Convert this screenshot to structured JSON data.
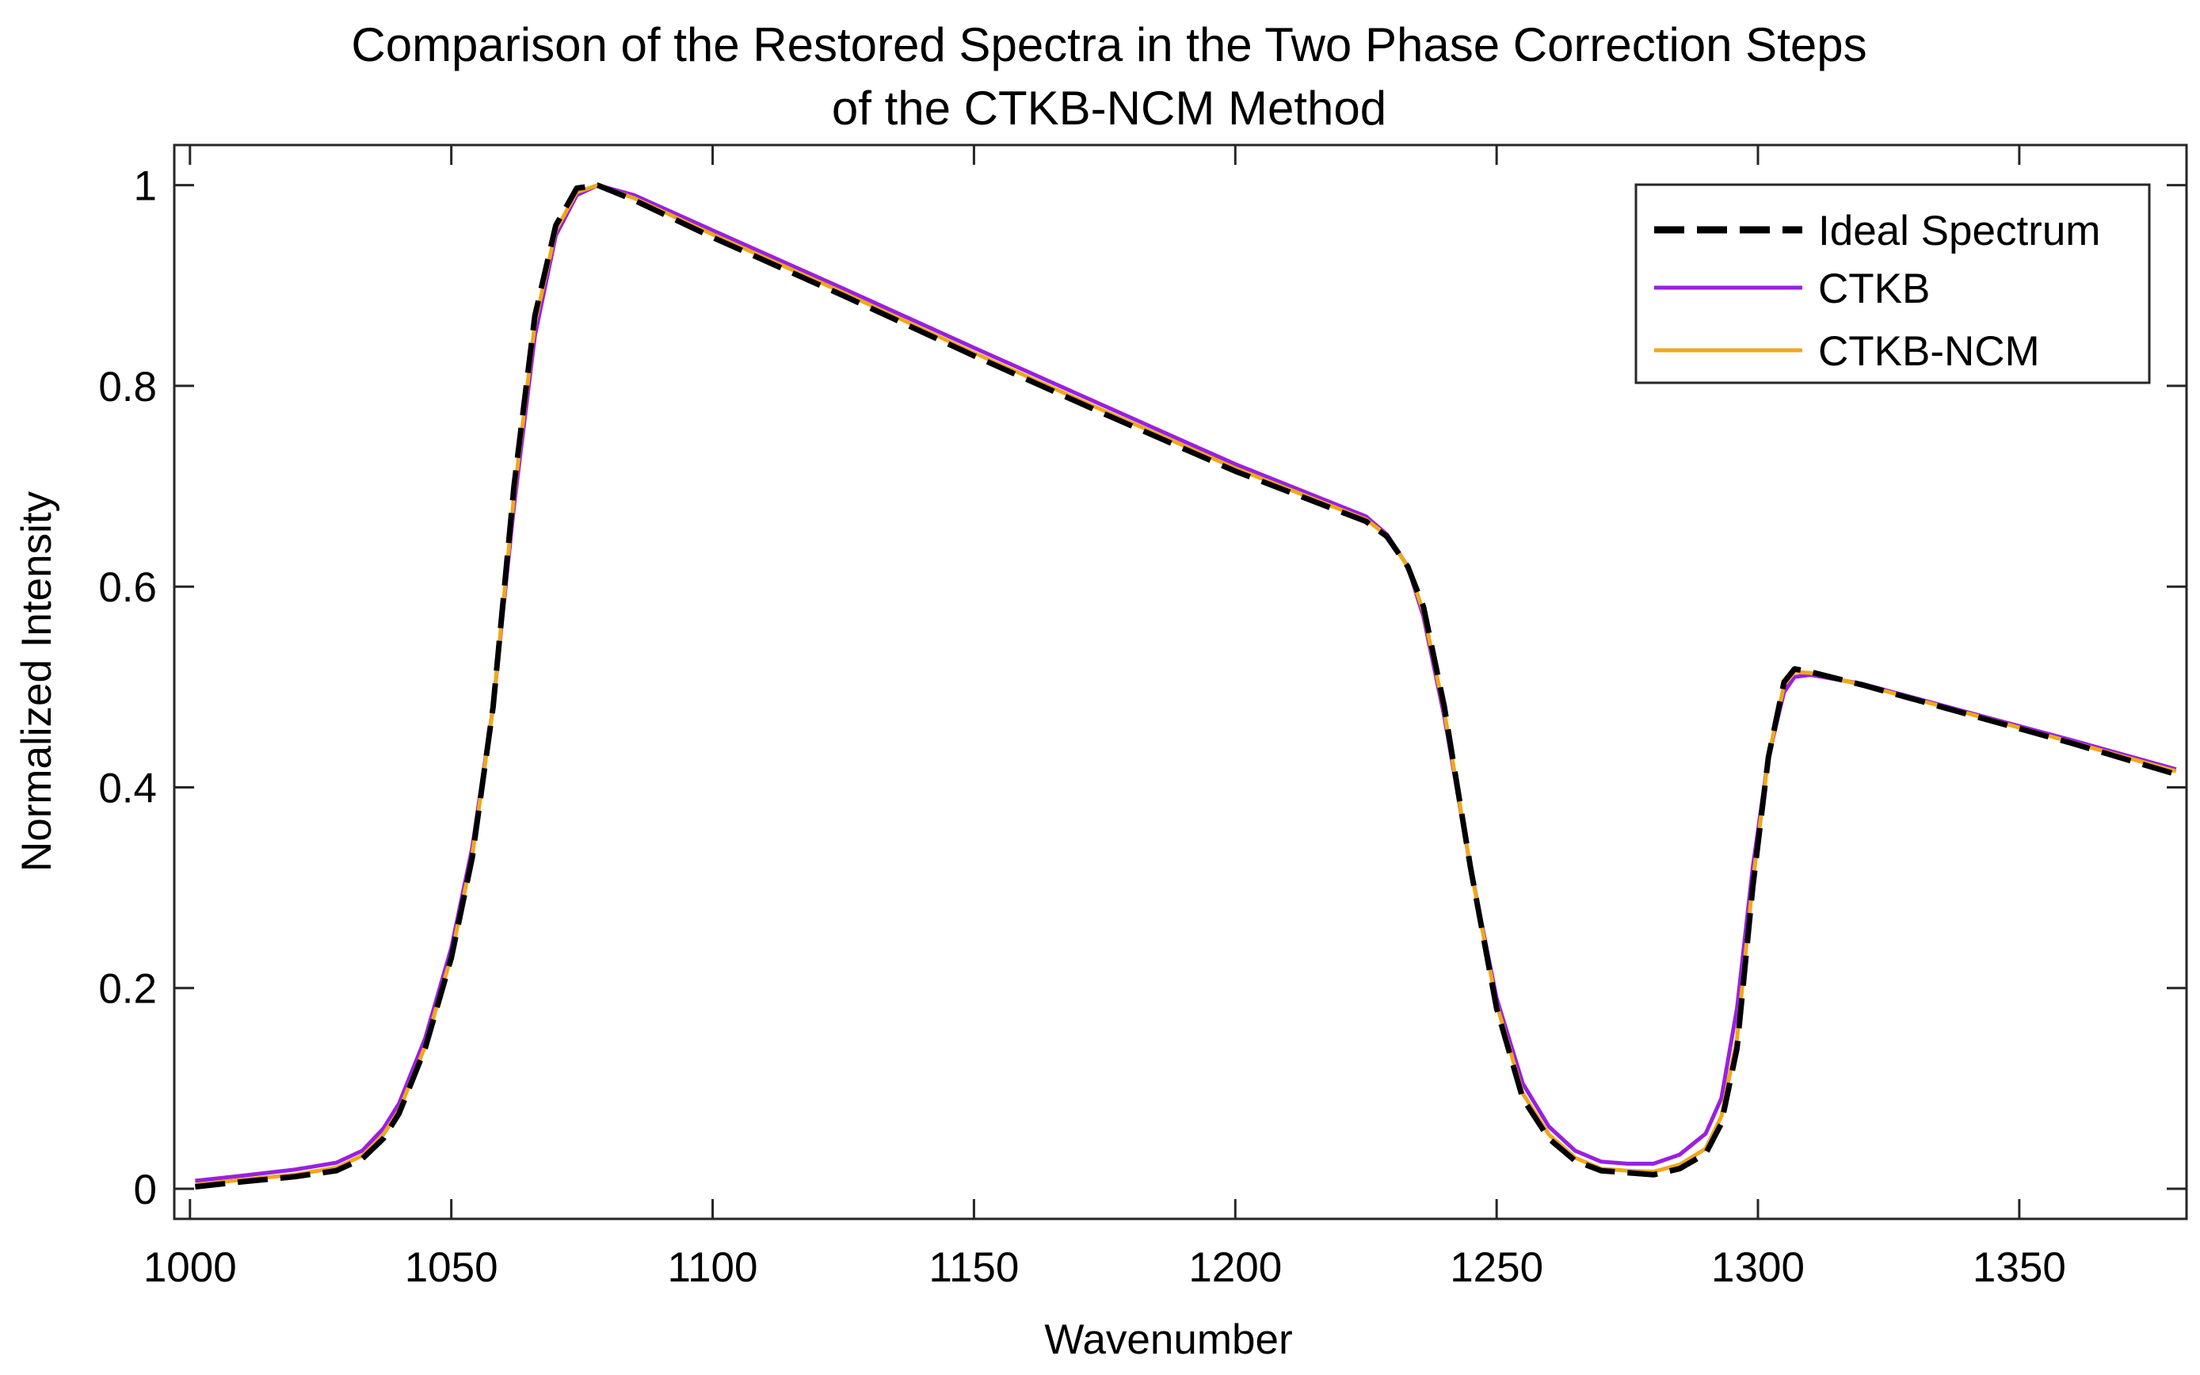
{
  "chart_data": {
    "type": "line",
    "title_line1": "Comparison of the Restored Spectra in the Two Phase Correction Steps",
    "title_line2": "of the CTKB-NCM Method",
    "xlabel": "Wavenumber",
    "ylabel": "Normalized Intensity",
    "xlim": [
      997,
      1382
    ],
    "ylim": [
      -0.03,
      1.04
    ],
    "xticks": [
      1000,
      1050,
      1100,
      1150,
      1200,
      1250,
      1300,
      1350
    ],
    "yticks": [
      0,
      0.2,
      0.4,
      0.6,
      0.8,
      1
    ],
    "ytick_labels": [
      "0",
      "0.2",
      "0.4",
      "0.6",
      "0.8",
      "1"
    ],
    "legend_position": "top-right",
    "series": [
      {
        "name": "Ideal Spectrum",
        "color": "#000000",
        "style": "dashed",
        "points": [
          [
            1001,
            0.002
          ],
          [
            1010,
            0.007
          ],
          [
            1020,
            0.012
          ],
          [
            1028,
            0.018
          ],
          [
            1033,
            0.03
          ],
          [
            1037,
            0.05
          ],
          [
            1040,
            0.075
          ],
          [
            1045,
            0.14
          ],
          [
            1050,
            0.23
          ],
          [
            1054,
            0.33
          ],
          [
            1058,
            0.48
          ],
          [
            1062,
            0.7
          ],
          [
            1066,
            0.87
          ],
          [
            1070,
            0.96
          ],
          [
            1074,
            0.997
          ],
          [
            1078,
            1.0
          ],
          [
            1085,
            0.985
          ],
          [
            1100,
            0.948
          ],
          [
            1125,
            0.89
          ],
          [
            1150,
            0.83
          ],
          [
            1175,
            0.772
          ],
          [
            1200,
            0.715
          ],
          [
            1225,
            0.665
          ],
          [
            1229,
            0.65
          ],
          [
            1233,
            0.62
          ],
          [
            1236,
            0.58
          ],
          [
            1240,
            0.48
          ],
          [
            1245,
            0.32
          ],
          [
            1250,
            0.18
          ],
          [
            1255,
            0.09
          ],
          [
            1260,
            0.05
          ],
          [
            1265,
            0.028
          ],
          [
            1270,
            0.018
          ],
          [
            1275,
            0.016
          ],
          [
            1280,
            0.014
          ],
          [
            1285,
            0.02
          ],
          [
            1290,
            0.035
          ],
          [
            1293,
            0.065
          ],
          [
            1296,
            0.14
          ],
          [
            1299,
            0.3
          ],
          [
            1302,
            0.43
          ],
          [
            1305,
            0.505
          ],
          [
            1307,
            0.518
          ],
          [
            1310,
            0.515
          ],
          [
            1320,
            0.502
          ],
          [
            1340,
            0.473
          ],
          [
            1360,
            0.444
          ],
          [
            1380,
            0.413
          ]
        ]
      },
      {
        "name": "CTKB",
        "color": "#9a1fe0",
        "style": "solid",
        "points": [
          [
            1001,
            0.008
          ],
          [
            1010,
            0.013
          ],
          [
            1020,
            0.019
          ],
          [
            1028,
            0.026
          ],
          [
            1033,
            0.038
          ],
          [
            1037,
            0.06
          ],
          [
            1040,
            0.085
          ],
          [
            1045,
            0.15
          ],
          [
            1050,
            0.24
          ],
          [
            1054,
            0.34
          ],
          [
            1058,
            0.48
          ],
          [
            1062,
            0.68
          ],
          [
            1066,
            0.85
          ],
          [
            1070,
            0.95
          ],
          [
            1074,
            0.99
          ],
          [
            1078,
            1.0
          ],
          [
            1085,
            0.99
          ],
          [
            1100,
            0.955
          ],
          [
            1125,
            0.897
          ],
          [
            1150,
            0.838
          ],
          [
            1175,
            0.78
          ],
          [
            1200,
            0.722
          ],
          [
            1225,
            0.67
          ],
          [
            1229,
            0.652
          ],
          [
            1233,
            0.62
          ],
          [
            1236,
            0.57
          ],
          [
            1240,
            0.47
          ],
          [
            1245,
            0.32
          ],
          [
            1250,
            0.19
          ],
          [
            1255,
            0.105
          ],
          [
            1260,
            0.062
          ],
          [
            1265,
            0.038
          ],
          [
            1270,
            0.027
          ],
          [
            1275,
            0.025
          ],
          [
            1280,
            0.025
          ],
          [
            1285,
            0.034
          ],
          [
            1290,
            0.055
          ],
          [
            1293,
            0.09
          ],
          [
            1296,
            0.18
          ],
          [
            1299,
            0.32
          ],
          [
            1302,
            0.43
          ],
          [
            1305,
            0.495
          ],
          [
            1307,
            0.51
          ],
          [
            1310,
            0.512
          ],
          [
            1320,
            0.503
          ],
          [
            1340,
            0.475
          ],
          [
            1360,
            0.447
          ],
          [
            1380,
            0.418
          ]
        ]
      },
      {
        "name": "CTKB-NCM",
        "color": "#f0a818",
        "style": "solid",
        "points": [
          [
            1001,
            0.004
          ],
          [
            1010,
            0.009
          ],
          [
            1020,
            0.014
          ],
          [
            1028,
            0.021
          ],
          [
            1033,
            0.033
          ],
          [
            1037,
            0.054
          ],
          [
            1040,
            0.078
          ],
          [
            1045,
            0.142
          ],
          [
            1050,
            0.232
          ],
          [
            1054,
            0.332
          ],
          [
            1058,
            0.48
          ],
          [
            1062,
            0.69
          ],
          [
            1066,
            0.862
          ],
          [
            1070,
            0.955
          ],
          [
            1074,
            0.993
          ],
          [
            1078,
            1.0
          ],
          [
            1085,
            0.987
          ],
          [
            1100,
            0.951
          ],
          [
            1125,
            0.893
          ],
          [
            1150,
            0.833
          ],
          [
            1175,
            0.775
          ],
          [
            1200,
            0.718
          ],
          [
            1225,
            0.667
          ],
          [
            1229,
            0.651
          ],
          [
            1233,
            0.62
          ],
          [
            1236,
            0.575
          ],
          [
            1240,
            0.475
          ],
          [
            1245,
            0.32
          ],
          [
            1250,
            0.184
          ],
          [
            1255,
            0.095
          ],
          [
            1260,
            0.054
          ],
          [
            1265,
            0.031
          ],
          [
            1270,
            0.02
          ],
          [
            1275,
            0.018
          ],
          [
            1280,
            0.017
          ],
          [
            1285,
            0.024
          ],
          [
            1290,
            0.04
          ],
          [
            1293,
            0.072
          ],
          [
            1296,
            0.15
          ],
          [
            1299,
            0.305
          ],
          [
            1302,
            0.43
          ],
          [
            1305,
            0.502
          ],
          [
            1307,
            0.515
          ],
          [
            1310,
            0.514
          ],
          [
            1320,
            0.502
          ],
          [
            1340,
            0.474
          ],
          [
            1360,
            0.445
          ],
          [
            1380,
            0.416
          ]
        ]
      }
    ]
  }
}
